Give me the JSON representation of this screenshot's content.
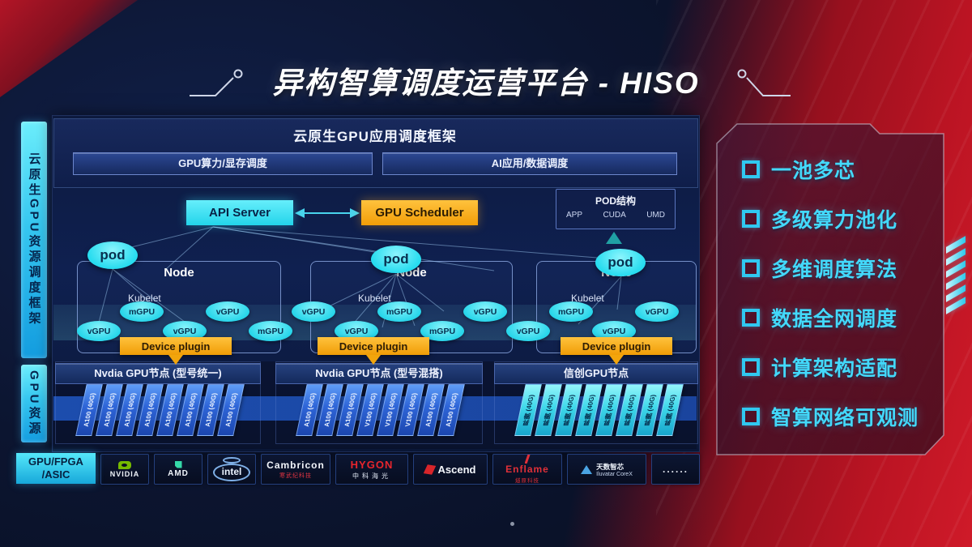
{
  "title": "异构智算调度运营平台 - HISO",
  "colors": {
    "accent_cyan": "#2fe0f2",
    "accent_orange": "#f8a81c",
    "bg_navy": "#0d1a3e",
    "bg_red": "#bb1423",
    "card_blue": "#2f66d8",
    "card_cyan": "#3fd8ea",
    "feature_text": "#43d9fb"
  },
  "left_bars": [
    {
      "label": "云原生GPU资源调度框架"
    },
    {
      "label": "GPU资源"
    }
  ],
  "app_framework": {
    "title": "云原生GPU应用调度框架",
    "boxes": [
      "GPU算力/显存调度",
      "AI应用/数据调度"
    ]
  },
  "scheduler": {
    "api_server": "API Server",
    "gpu_scheduler": "GPU Scheduler",
    "pod_structure": {
      "title": "POD结构",
      "items": [
        "APP",
        "CUDA",
        "UMD"
      ]
    }
  },
  "nodes": [
    {
      "title": "Node",
      "agent": "Kubelet",
      "pod": "pod",
      "device_plugin": "Device plugin"
    },
    {
      "title": "Node",
      "agent": "Kubelet",
      "pod": "pod",
      "device_plugin": "Device plugin"
    },
    {
      "title": "Node",
      "agent": "Kubelet",
      "pod": "pod",
      "device_plugin": "Device plugin"
    }
  ],
  "gpu_bubbles": [
    "vGPU",
    "mGPU",
    "vGPU",
    "vGPU",
    "mGPU",
    "vGPU",
    "vGPU",
    "mGPU",
    "mGPU",
    "vGPU",
    "vGPU",
    "mGPU",
    "vGPU",
    "vGPU"
  ],
  "gpu_groups": [
    {
      "title": "Nvdia GPU节点 (型号统一)",
      "style": "blue",
      "cards": [
        "A100 (40G)",
        "A100 (40G)",
        "A100 (40G)",
        "A100 (40G)",
        "A100 (40G)",
        "A100 (40G)",
        "A100 (40G)",
        "A100 (40G)"
      ]
    },
    {
      "title": "Nvdia GPU节点 (型号混搭)",
      "style": "blue",
      "cards": [
        "A100 (40G)",
        "A100 (40G)",
        "A100 (40G)",
        "V100 (40G)",
        "V100 (40G)",
        "V100 (40G)",
        "A100 (40G)",
        "A100 (40G)"
      ]
    },
    {
      "title": "信创GPU节点",
      "style": "cyan",
      "cards": [
        "昇腾 (40G)",
        "昇腾 (40G)",
        "昇腾 (40G)",
        "昇腾 (40G)",
        "昇腾 (40G)",
        "昇腾 (40G)",
        "昇腾 (40G)",
        "昇腾 (40G)"
      ]
    }
  ],
  "hardware_bar": {
    "label_line1": "GPU/FPGA",
    "label_line2": "/ASIC",
    "vendors": [
      {
        "name": "NVIDIA",
        "sub": "",
        "icon": "nvidia-icon",
        "style": "nvidia"
      },
      {
        "name": "AMD",
        "sub": "",
        "icon": "amd-icon",
        "style": "amd"
      },
      {
        "name": "intel",
        "sub": "",
        "icon": "intel-oval",
        "style": "intel"
      },
      {
        "name": "Cambricon",
        "sub": "寒武纪科技",
        "icon": "",
        "style": "cambricon"
      },
      {
        "name": "HYGON",
        "sub": "中科海光",
        "icon": "",
        "style": "hygon"
      },
      {
        "name": "Ascend",
        "sub": "",
        "icon": "ascend-icon",
        "style": "ascend"
      },
      {
        "name": "Enflame",
        "sub": "燧原科技",
        "icon": "enflame-icon",
        "style": "enflame"
      },
      {
        "name": "天数智芯",
        "sub": "Iluvatar CoreX",
        "icon": "iluvatar-icon",
        "style": "iluvatar"
      },
      {
        "name": "......",
        "sub": "",
        "icon": "",
        "style": "dots"
      }
    ]
  },
  "features": [
    "一池多芯",
    "多级算力池化",
    "多维调度算法",
    "数据全网调度",
    "计算架构适配",
    "智算网络可观测"
  ]
}
